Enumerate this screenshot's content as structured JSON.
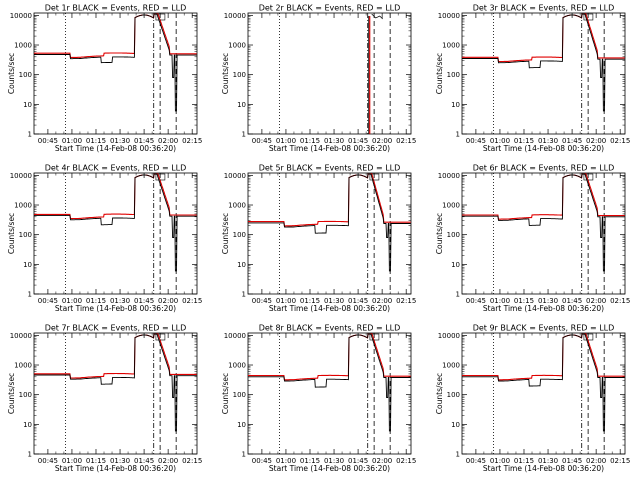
{
  "chart_data": {
    "type": "line",
    "grid": false,
    "y_scale": "log",
    "ylim": [
      1,
      12000
    ],
    "y_ticks": [
      1,
      10,
      100,
      1000,
      10000
    ],
    "ylabel": "Counts/sec",
    "xlabel": "Start Time (14-Feb-08 00:36:20)",
    "x_ticks": [
      "00:45",
      "01:00",
      "01:15",
      "01:30",
      "01:45",
      "02:00",
      "02:15"
    ],
    "xlim": [
      "00:36:20",
      "02:18"
    ],
    "series_legend": {
      "black": "Events",
      "red": "LLD"
    },
    "panels": [
      {
        "title": "Det 1r BLACK = Events, RED = LLD",
        "base": 480,
        "scale": 1.0,
        "dip": 0.65,
        "gap": false
      },
      {
        "title": "Det 2r BLACK = Events, RED = LLD",
        "base": 0,
        "scale": 0,
        "dip": 0,
        "gap": true
      },
      {
        "title": "Det 3r BLACK = Events, RED = LLD",
        "base": 350,
        "scale": 0.9,
        "dip": 0.6,
        "gap": false
      },
      {
        "title": "Det 4r BLACK = Events, RED = LLD",
        "base": 440,
        "scale": 1.0,
        "dip": 0.6,
        "gap": false
      },
      {
        "title": "Det 5r BLACK = Events, RED = LLD",
        "base": 250,
        "scale": 0.85,
        "dip": 0.55,
        "gap": false
      },
      {
        "title": "Det 6r BLACK = Events, RED = LLD",
        "base": 420,
        "scale": 1.0,
        "dip": 0.6,
        "gap": false
      },
      {
        "title": "Det 7r BLACK = Events, RED = LLD",
        "base": 460,
        "scale": 1.0,
        "dip": 0.6,
        "gap": false
      },
      {
        "title": "Det 8r BLACK = Events, RED = LLD",
        "base": 400,
        "scale": 0.95,
        "dip": 0.55,
        "gap": false
      },
      {
        "title": "Det 9r BLACK = Events, RED = LLD",
        "base": 400,
        "scale": 0.95,
        "dip": 0.6,
        "gap": false
      }
    ],
    "vertical_markers": [
      {
        "time": "00:56",
        "style": "dotted"
      },
      {
        "time": "01:51",
        "style": "dash-dot"
      },
      {
        "time": "01:55",
        "style": "dashed"
      },
      {
        "time": "02:05",
        "style": "dashed"
      }
    ],
    "colors": {
      "events": "#000000",
      "lld": "#e00000",
      "axes": "#000000"
    }
  }
}
